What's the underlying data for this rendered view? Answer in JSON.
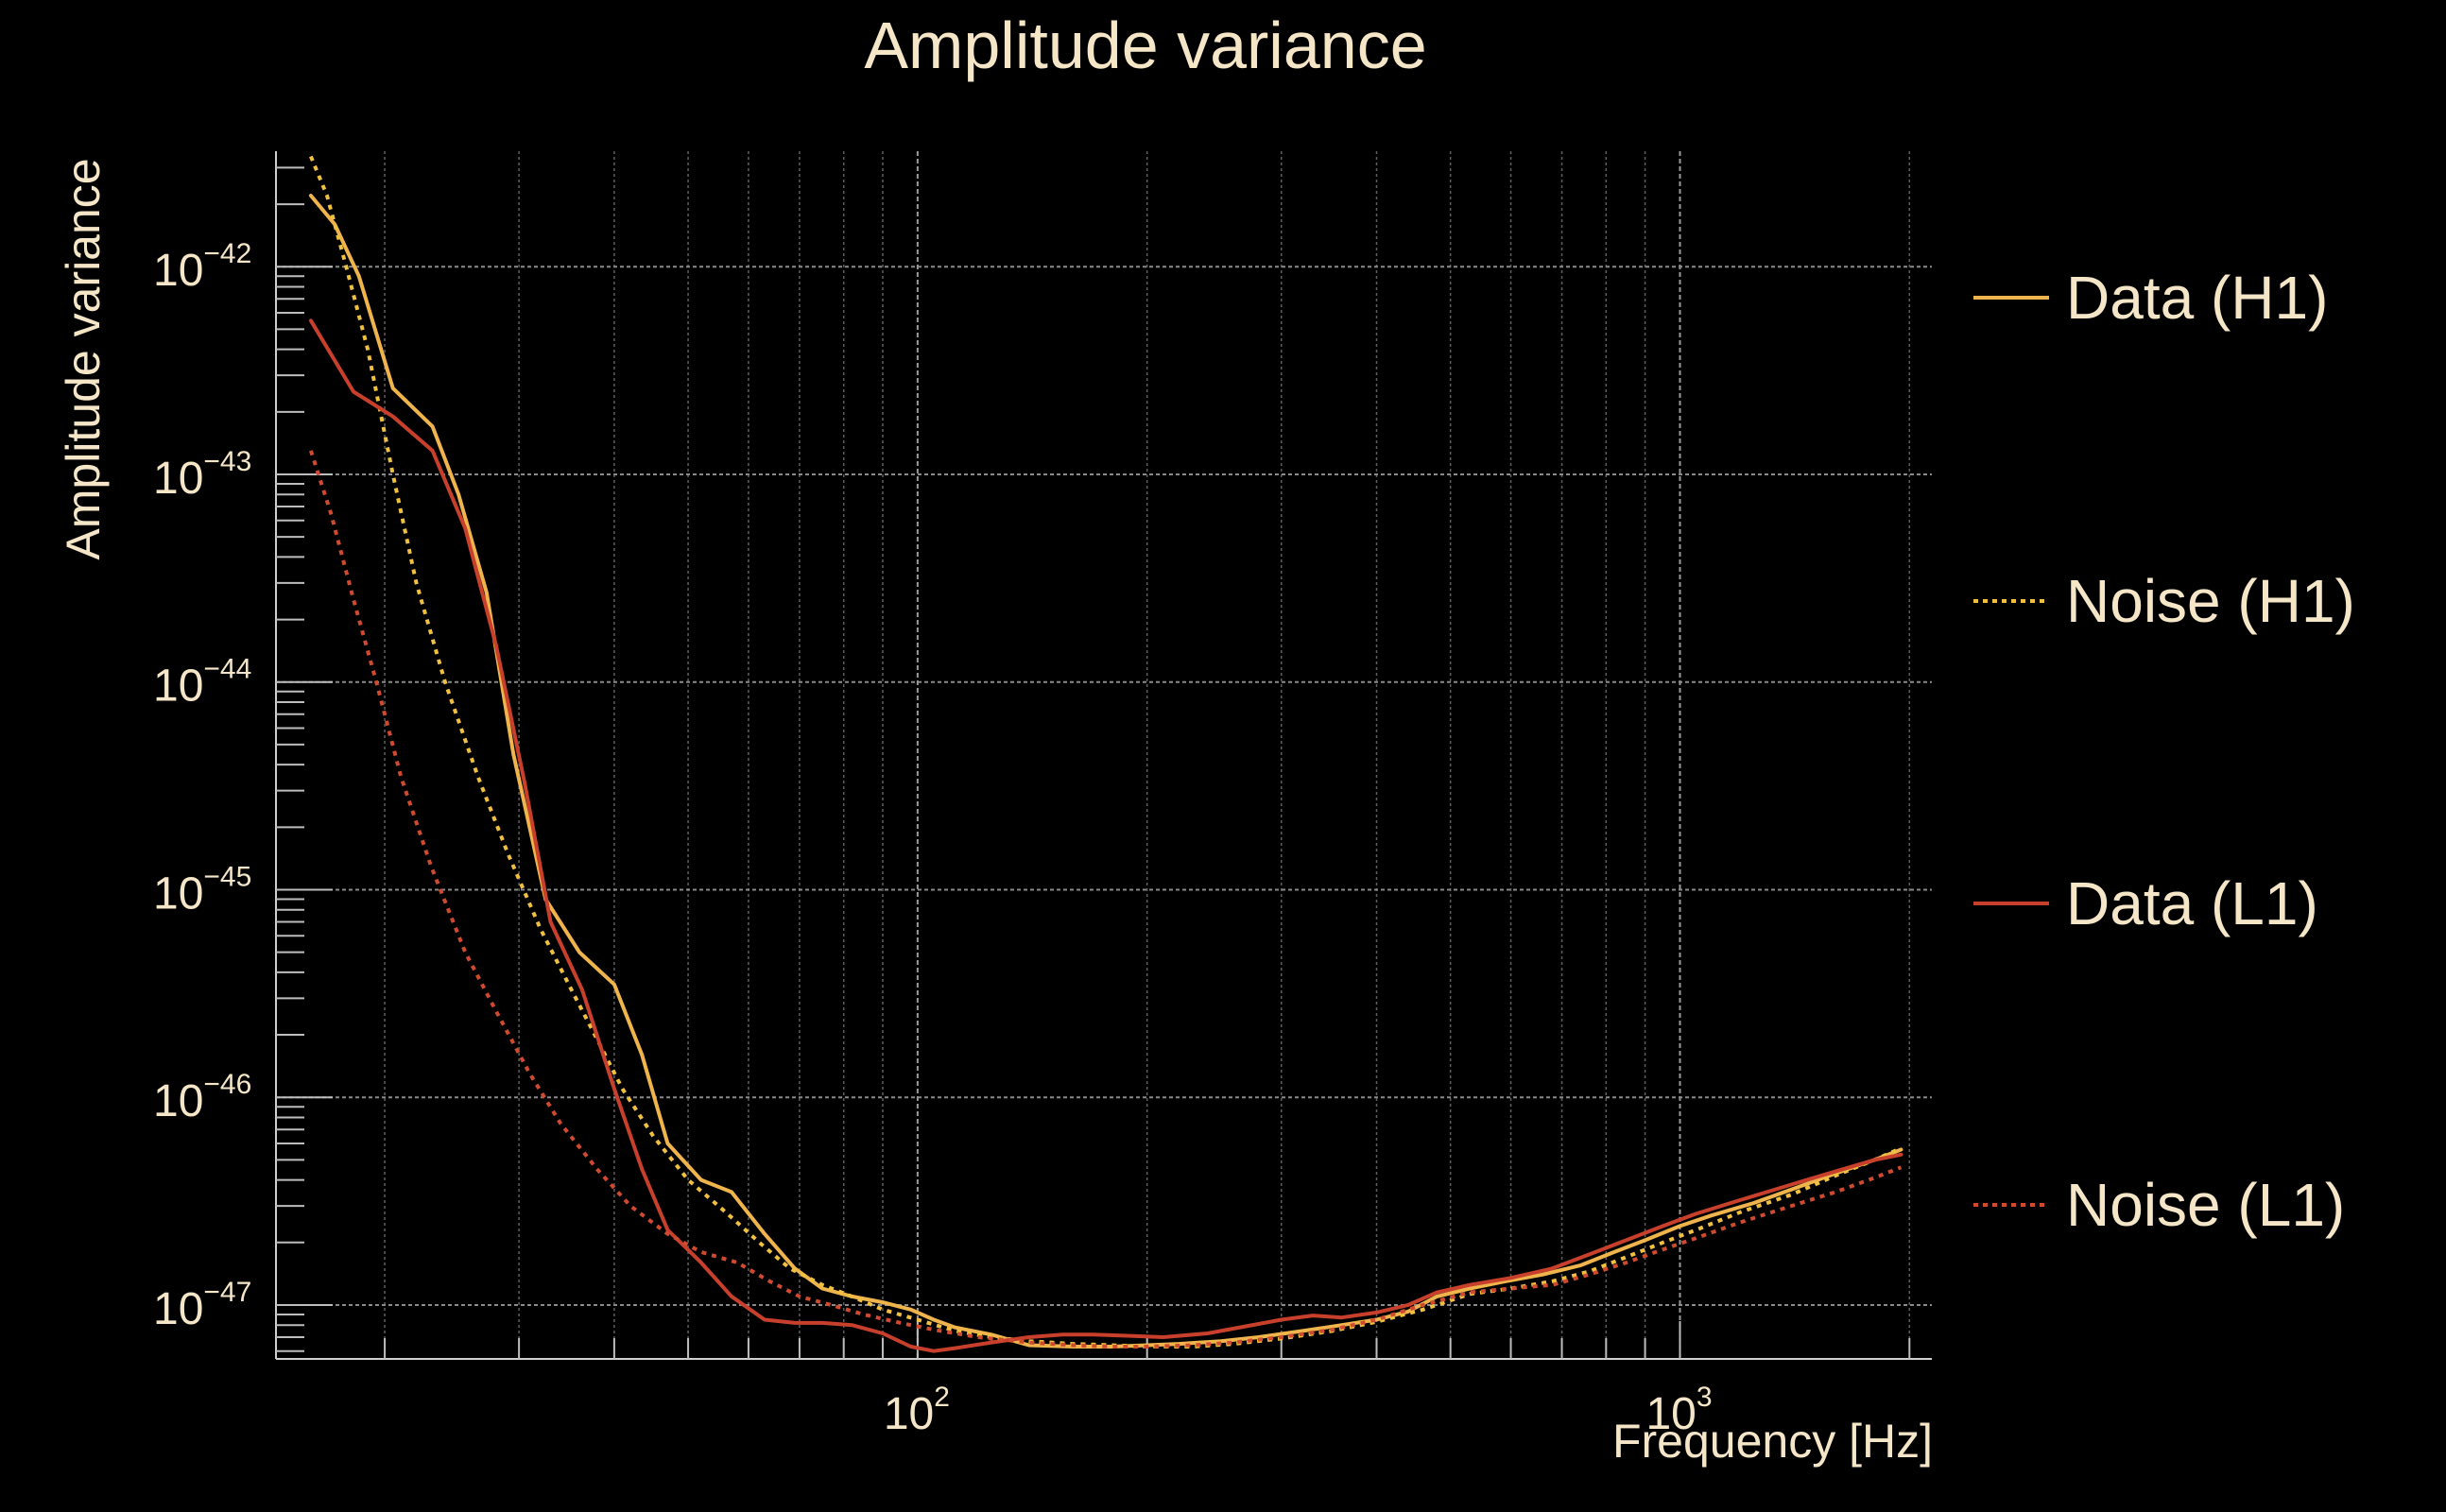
{
  "chart_data": {
    "type": "line",
    "title": "Amplitude variance",
    "xlabel": "Frequency [Hz]",
    "ylabel": "Amplitude variance",
    "x_scale": "log",
    "y_scale": "log",
    "xlim": [
      14.4,
      2140
    ],
    "ylim": [
      5.5e-48,
      3.6e-42
    ],
    "grid": true,
    "legend_position": "right",
    "x_ticks": [
      {
        "value": 100,
        "base": "10",
        "exp": "2"
      },
      {
        "value": 1000,
        "base": "10",
        "exp": "3"
      }
    ],
    "y_ticks": [
      {
        "value": 1e-42,
        "base": "10",
        "exp": "−42"
      },
      {
        "value": 1e-43,
        "base": "10",
        "exp": "−43"
      },
      {
        "value": 1e-44,
        "base": "10",
        "exp": "−44"
      },
      {
        "value": 1e-45,
        "base": "10",
        "exp": "−45"
      },
      {
        "value": 1e-46,
        "base": "10",
        "exp": "−46"
      },
      {
        "value": 1e-47,
        "base": "10",
        "exp": "−47"
      }
    ],
    "series": [
      {
        "name": "Data (H1)",
        "color": "#f0b44c",
        "style": "solid",
        "x": [
          16,
          17.2,
          18.5,
          20.5,
          23.1,
          25,
          27.2,
          29.5,
          32.5,
          36,
          40,
          43.5,
          47,
          52,
          57,
          63,
          69,
          75,
          82,
          90,
          98,
          105,
          112,
          125,
          140,
          160,
          180,
          200,
          220,
          250,
          280,
          320,
          360,
          400,
          440,
          480,
          530,
          590,
          660,
          740,
          820,
          900,
          1000,
          1100,
          1250,
          1400,
          1600,
          1800,
          1950
        ],
        "y": [
          2.2e-42,
          1.6e-42,
          9e-43,
          2.6e-43,
          1.7e-43,
          8e-44,
          2.7e-44,
          4.5e-45,
          9e-46,
          5e-46,
          3.5e-46,
          1.6e-46,
          6e-47,
          4e-47,
          3.5e-47,
          2.2e-47,
          1.5e-47,
          1.2e-47,
          1.1e-47,
          1.03e-47,
          9.5e-48,
          8.5e-48,
          7.8e-48,
          7.2e-48,
          6.4e-48,
          6.3e-48,
          6.3e-48,
          6.4e-48,
          6.5e-48,
          6.7e-48,
          7e-48,
          7.5e-48,
          8e-48,
          8.5e-48,
          9.3e-48,
          1.1e-47,
          1.2e-47,
          1.3e-47,
          1.4e-47,
          1.55e-47,
          1.8e-47,
          2.05e-47,
          2.4e-47,
          2.7e-47,
          3.1e-47,
          3.6e-47,
          4.3e-47,
          5e-47,
          5.6e-47
        ]
      },
      {
        "name": "Noise (H1)",
        "color": "#f0c040",
        "style": "dotted",
        "x": [
          16,
          16.8,
          17.8,
          19,
          20.5,
          22,
          24,
          26.5,
          29,
          32,
          35,
          38,
          41,
          45,
          50,
          56,
          62,
          68,
          75,
          82,
          90,
          100,
          112,
          125,
          140,
          160,
          180,
          200,
          230,
          260,
          300,
          350,
          400,
          460,
          530,
          600,
          680,
          760,
          850,
          950,
          1050,
          1200,
          1400,
          1600,
          1800,
          1950
        ],
        "y": [
          3.4e-42,
          2.2e-42,
          1e-42,
          4e-43,
          1e-43,
          3e-44,
          1e-44,
          3.5e-45,
          1.5e-45,
          6.5e-46,
          3.4e-46,
          1.9e-46,
          1.1e-46,
          6.5e-47,
          4e-47,
          2.8e-47,
          2e-47,
          1.5e-47,
          1.25e-47,
          1.1e-47,
          9.5e-48,
          8.5e-48,
          7.5e-48,
          7e-48,
          6.7e-48,
          6.5e-48,
          6.4e-48,
          6.3e-48,
          6.3e-48,
          6.5e-48,
          6.9e-48,
          7.5e-48,
          8.3e-48,
          9.5e-48,
          1.13e-47,
          1.2e-47,
          1.3e-47,
          1.45e-47,
          1.7e-47,
          2e-47,
          2.3e-47,
          2.8e-47,
          3.4e-47,
          4.2e-47,
          5e-47,
          5.7e-47
        ]
      },
      {
        "name": "Data (L1)",
        "color": "#c8402c",
        "style": "solid",
        "x": [
          16,
          18.2,
          20.5,
          23.1,
          25.5,
          28,
          30.5,
          33,
          36.3,
          40,
          43.5,
          47,
          52,
          57,
          63,
          69,
          75,
          82,
          90,
          98,
          105,
          112,
          125,
          140,
          155,
          170,
          190,
          210,
          240,
          270,
          300,
          330,
          360,
          400,
          440,
          480,
          530,
          600,
          680,
          760,
          850,
          950,
          1050,
          1200,
          1400,
          1600,
          1800,
          1950
        ],
        "y": [
          5.5e-43,
          2.5e-43,
          1.9e-43,
          1.3e-43,
          5.5e-44,
          1.5e-44,
          3.3e-45,
          7e-46,
          3.3e-46,
          1.1e-46,
          4.5e-47,
          2.3e-47,
          1.6e-47,
          1.1e-47,
          8.5e-48,
          8.2e-48,
          8.2e-48,
          8e-48,
          7.3e-48,
          6.3e-48,
          6e-48,
          6.2e-48,
          6.6e-48,
          7e-48,
          7.2e-48,
          7.2e-48,
          7.1e-48,
          7e-48,
          7.3e-48,
          7.9e-48,
          8.5e-48,
          8.9e-48,
          8.7e-48,
          9.2e-48,
          1e-47,
          1.15e-47,
          1.25e-47,
          1.35e-47,
          1.5e-47,
          1.75e-47,
          2.05e-47,
          2.4e-47,
          2.75e-47,
          3.2e-47,
          3.8e-47,
          4.4e-47,
          5e-47,
          5.3e-47
        ]
      },
      {
        "name": "Noise (L1)",
        "color": "#d04a30",
        "style": "dotted",
        "x": [
          16,
          17,
          18.2,
          19.5,
          21,
          23,
          25.5,
          28,
          31,
          34,
          38,
          42,
          47,
          52,
          58,
          64,
          70,
          77,
          85,
          95,
          105,
          120,
          140,
          160,
          180,
          200,
          230,
          260,
          300,
          350,
          400,
          460,
          530,
          600,
          680,
          760,
          850,
          950,
          1050,
          1200,
          1400,
          1600,
          1800,
          1950
        ],
        "y": [
          1.3e-43,
          6.5e-44,
          2.5e-44,
          1e-44,
          3.5e-45,
          1.3e-45,
          5e-46,
          2.6e-46,
          1.3e-46,
          7.5e-47,
          4.5e-47,
          3e-47,
          2.2e-47,
          1.8e-47,
          1.6e-47,
          1.3e-47,
          1.1e-47,
          1e-47,
          9e-48,
          8.2e-48,
          7.6e-48,
          7e-48,
          6.6e-48,
          6.4e-48,
          6.3e-48,
          6.3e-48,
          6.4e-48,
          6.6e-48,
          7e-48,
          7.6e-48,
          8.5e-48,
          1e-47,
          1.15e-47,
          1.2e-47,
          1.25e-47,
          1.4e-47,
          1.6e-47,
          1.85e-47,
          2.1e-47,
          2.5e-47,
          3e-47,
          3.5e-47,
          4.1e-47,
          4.6e-47
        ]
      }
    ]
  }
}
